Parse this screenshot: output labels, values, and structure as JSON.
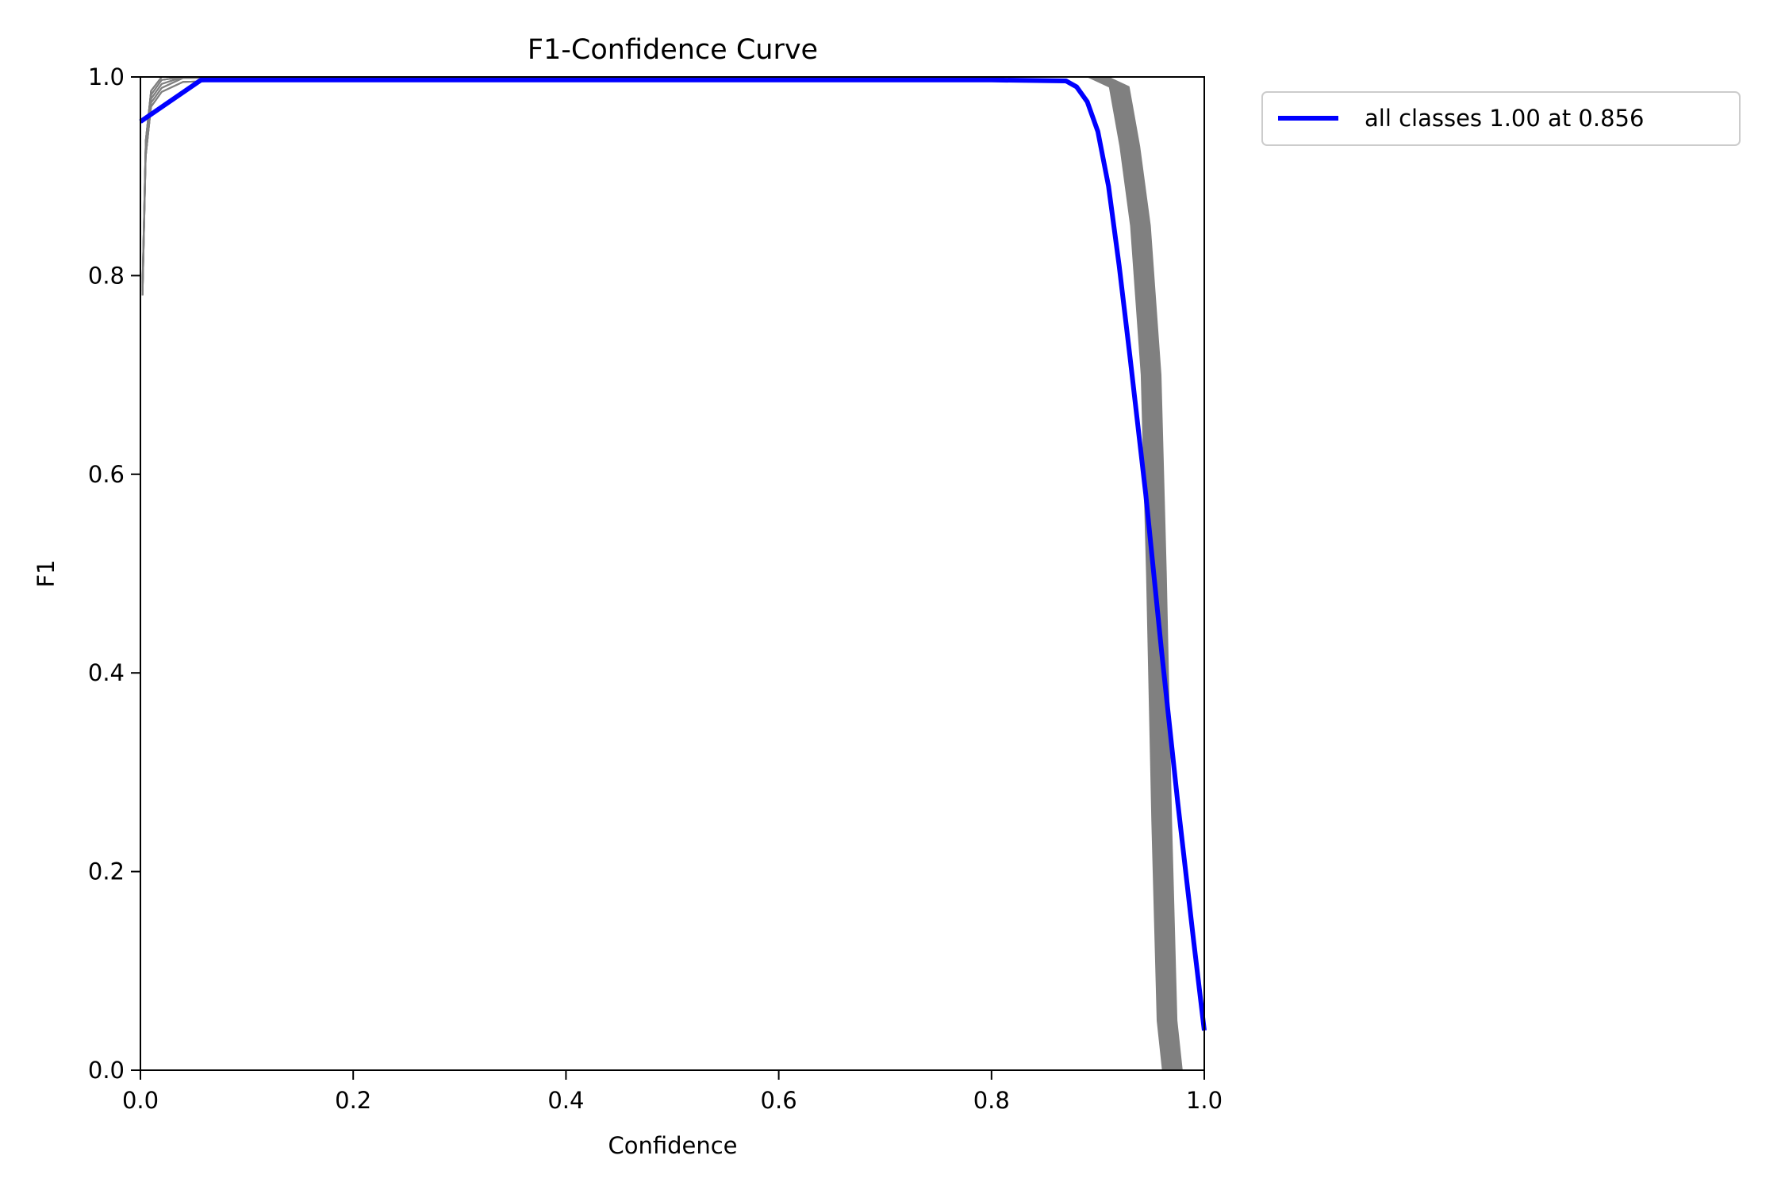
{
  "chart_data": {
    "type": "line",
    "title": "F1-Confidence Curve",
    "xlabel": "Confidence",
    "ylabel": "F1",
    "xlim": [
      0.0,
      1.0
    ],
    "ylim": [
      0.0,
      1.0
    ],
    "grid": false,
    "legend_position": "outside upper right",
    "x_ticks": [
      "0.0",
      "0.2",
      "0.4",
      "0.6",
      "0.8",
      "1.0"
    ],
    "y_ticks": [
      "0.0",
      "0.2",
      "0.4",
      "0.6",
      "0.8",
      "1.0"
    ],
    "series": [
      {
        "name": "all classes 1.00 at 0.856",
        "color": "#0000ff",
        "linewidth": 6,
        "x": [
          0.0,
          0.057,
          0.2,
          0.4,
          0.6,
          0.8,
          0.87,
          0.88,
          0.89,
          0.9,
          0.91,
          0.92,
          0.93,
          0.945,
          0.96,
          0.975,
          0.99,
          1.0
        ],
        "y": [
          0.955,
          0.997,
          0.997,
          0.997,
          0.997,
          0.997,
          0.996,
          0.99,
          0.975,
          0.945,
          0.89,
          0.81,
          0.72,
          0.58,
          0.42,
          0.27,
          0.13,
          0.04
        ]
      },
      {
        "name": "per-class curves (gray, unlabeled)",
        "color": "#808080",
        "linewidth": 2,
        "count_estimate": 20,
        "x": [
          0.002,
          0.005,
          0.01,
          0.02,
          0.04,
          0.2,
          0.5,
          0.8,
          0.9,
          0.92,
          0.93,
          0.94,
          0.95,
          0.955,
          0.96,
          0.965,
          0.97,
          1.0
        ],
        "y": [
          0.78,
          0.92,
          0.97,
          0.985,
          0.995,
          1.0,
          1.0,
          1.0,
          1.0,
          0.99,
          0.93,
          0.85,
          0.7,
          0.5,
          0.25,
          0.05,
          0.0,
          0.0
        ]
      }
    ],
    "legend": [
      {
        "label": "all classes 1.00 at 0.856",
        "color": "#0000ff"
      }
    ]
  },
  "title": "F1-Confidence Curve",
  "xlabel": "Confidence",
  "ylabel": "F1",
  "legend_label": "all classes 1.00 at 0.856",
  "x_ticks": [
    "0.0",
    "0.2",
    "0.4",
    "0.6",
    "0.8",
    "1.0"
  ],
  "y_ticks": [
    "0.0",
    "0.2",
    "0.4",
    "0.6",
    "0.8",
    "1.0"
  ]
}
